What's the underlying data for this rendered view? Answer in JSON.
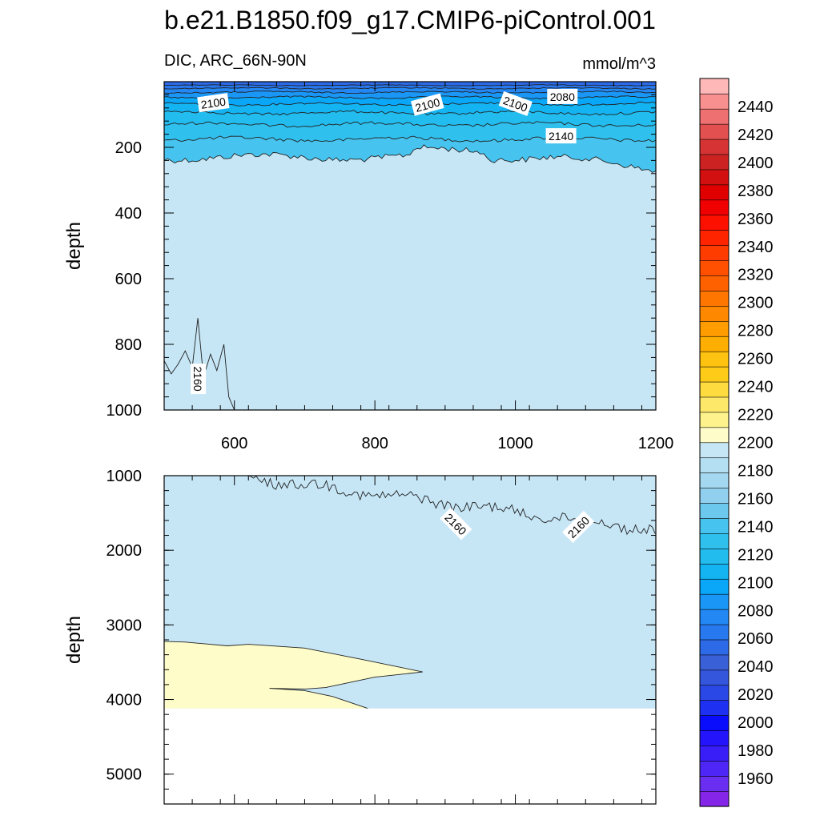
{
  "chart_data": {
    "type": "contour",
    "title": "b.e21.B1850.f09_g17.CMIP6-piControl.001",
    "variable_label": "DIC, ARC_66N-90N",
    "units_label": "mmol/m^3",
    "ylabel": "depth",
    "x_ticks": [
      600,
      800,
      1000,
      1200
    ],
    "xlim": [
      500,
      1200
    ],
    "panels": [
      {
        "name": "upper",
        "ylim": [
          0,
          1000
        ],
        "y_ticks": [
          200,
          400,
          600,
          800,
          1000
        ],
        "background_value": 2170,
        "contour_labels": [
          {
            "text": "2100",
            "x": 570,
            "y": 65,
            "angle": -8
          },
          {
            "text": "2100",
            "x": 875,
            "y": 71,
            "angle": -15
          },
          {
            "text": "2100",
            "x": 1000,
            "y": 68,
            "angle": 20
          },
          {
            "text": "2080",
            "x": 1067,
            "y": 46,
            "angle": 0
          },
          {
            "text": "2140",
            "x": 1065,
            "y": 166,
            "angle": 0
          },
          {
            "text": "2160",
            "x": 548,
            "y": 905,
            "angle": 90
          }
        ]
      },
      {
        "name": "lower",
        "ylim": [
          1000,
          5400
        ],
        "y_ticks": [
          1000,
          2000,
          3000,
          4000,
          5000
        ],
        "background_value": 2175,
        "ocean_floor_depth": 4120,
        "contour_labels": [
          {
            "text": "2160",
            "x": 915,
            "y": 1650,
            "angle": 45
          },
          {
            "text": "2160",
            "x": 1090,
            "y": 1690,
            "angle": -45
          }
        ]
      }
    ],
    "colorbar": {
      "min": 1940,
      "max": 2460,
      "step": 10,
      "labels": [
        "2440",
        "2420",
        "2400",
        "2380",
        "2360",
        "2340",
        "2320",
        "2300",
        "2280",
        "2260",
        "2240",
        "2220",
        "2200",
        "2180",
        "2160",
        "2140",
        "2120",
        "2100",
        "2080",
        "2060",
        "2040",
        "2020",
        "2000",
        "1980",
        "1960"
      ],
      "label_values": [
        2440,
        2420,
        2400,
        2380,
        2360,
        2340,
        2320,
        2300,
        2280,
        2260,
        2240,
        2220,
        2200,
        2180,
        2160,
        2140,
        2120,
        2100,
        2080,
        2060,
        2040,
        2020,
        2000,
        1980,
        1960
      ],
      "colors": [
        "#8525e8",
        "#6a2ef0",
        "#4e26f5",
        "#3a1ef8",
        "#2414fb",
        "#0a0cfc",
        "#1e30f2",
        "#2a48e6",
        "#3456dc",
        "#3a60d8",
        "#2c6ae8",
        "#2878f0",
        "#2488f4",
        "#1a96f6",
        "#0aa6f8",
        "#14b4f2",
        "#22bcee",
        "#30c0ee",
        "#46c4ef",
        "#6cc8ec",
        "#90d0ee",
        "#a4d8f0",
        "#b4def2",
        "#c6e6f6",
        "#fefcc8",
        "#fef28c",
        "#fee86a",
        "#fedc40",
        "#fecc18",
        "#fec210",
        "#feae00",
        "#fe9c00",
        "#fe8800",
        "#fe7600",
        "#fe6200",
        "#fe5000",
        "#fe3c00",
        "#fe2400",
        "#fe1000",
        "#f00000",
        "#e00000",
        "#d21010",
        "#cc2222",
        "#d63434",
        "#e25050",
        "#ee7070",
        "#f89090",
        "#feb8b8"
      ]
    }
  }
}
